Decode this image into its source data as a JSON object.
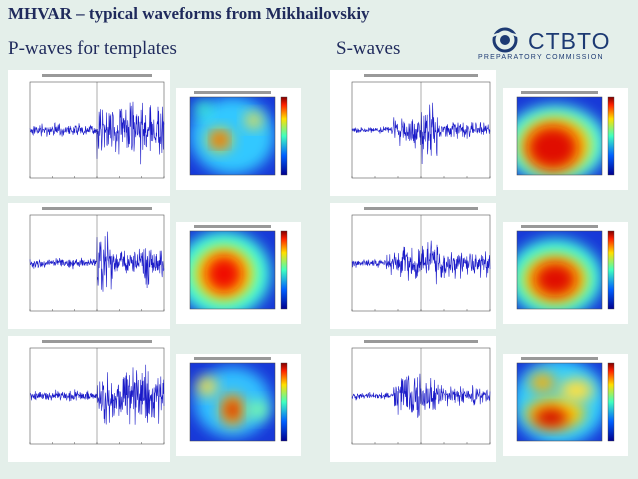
{
  "header": {
    "title": "MHVAR – typical waveforms from Mikhailovskiy",
    "left_heading": "P-waves for templates",
    "right_heading": "S-waves"
  },
  "logo": {
    "name": "CTBTO",
    "subtitle": "PREPARATORY COMMISSION"
  }
}
